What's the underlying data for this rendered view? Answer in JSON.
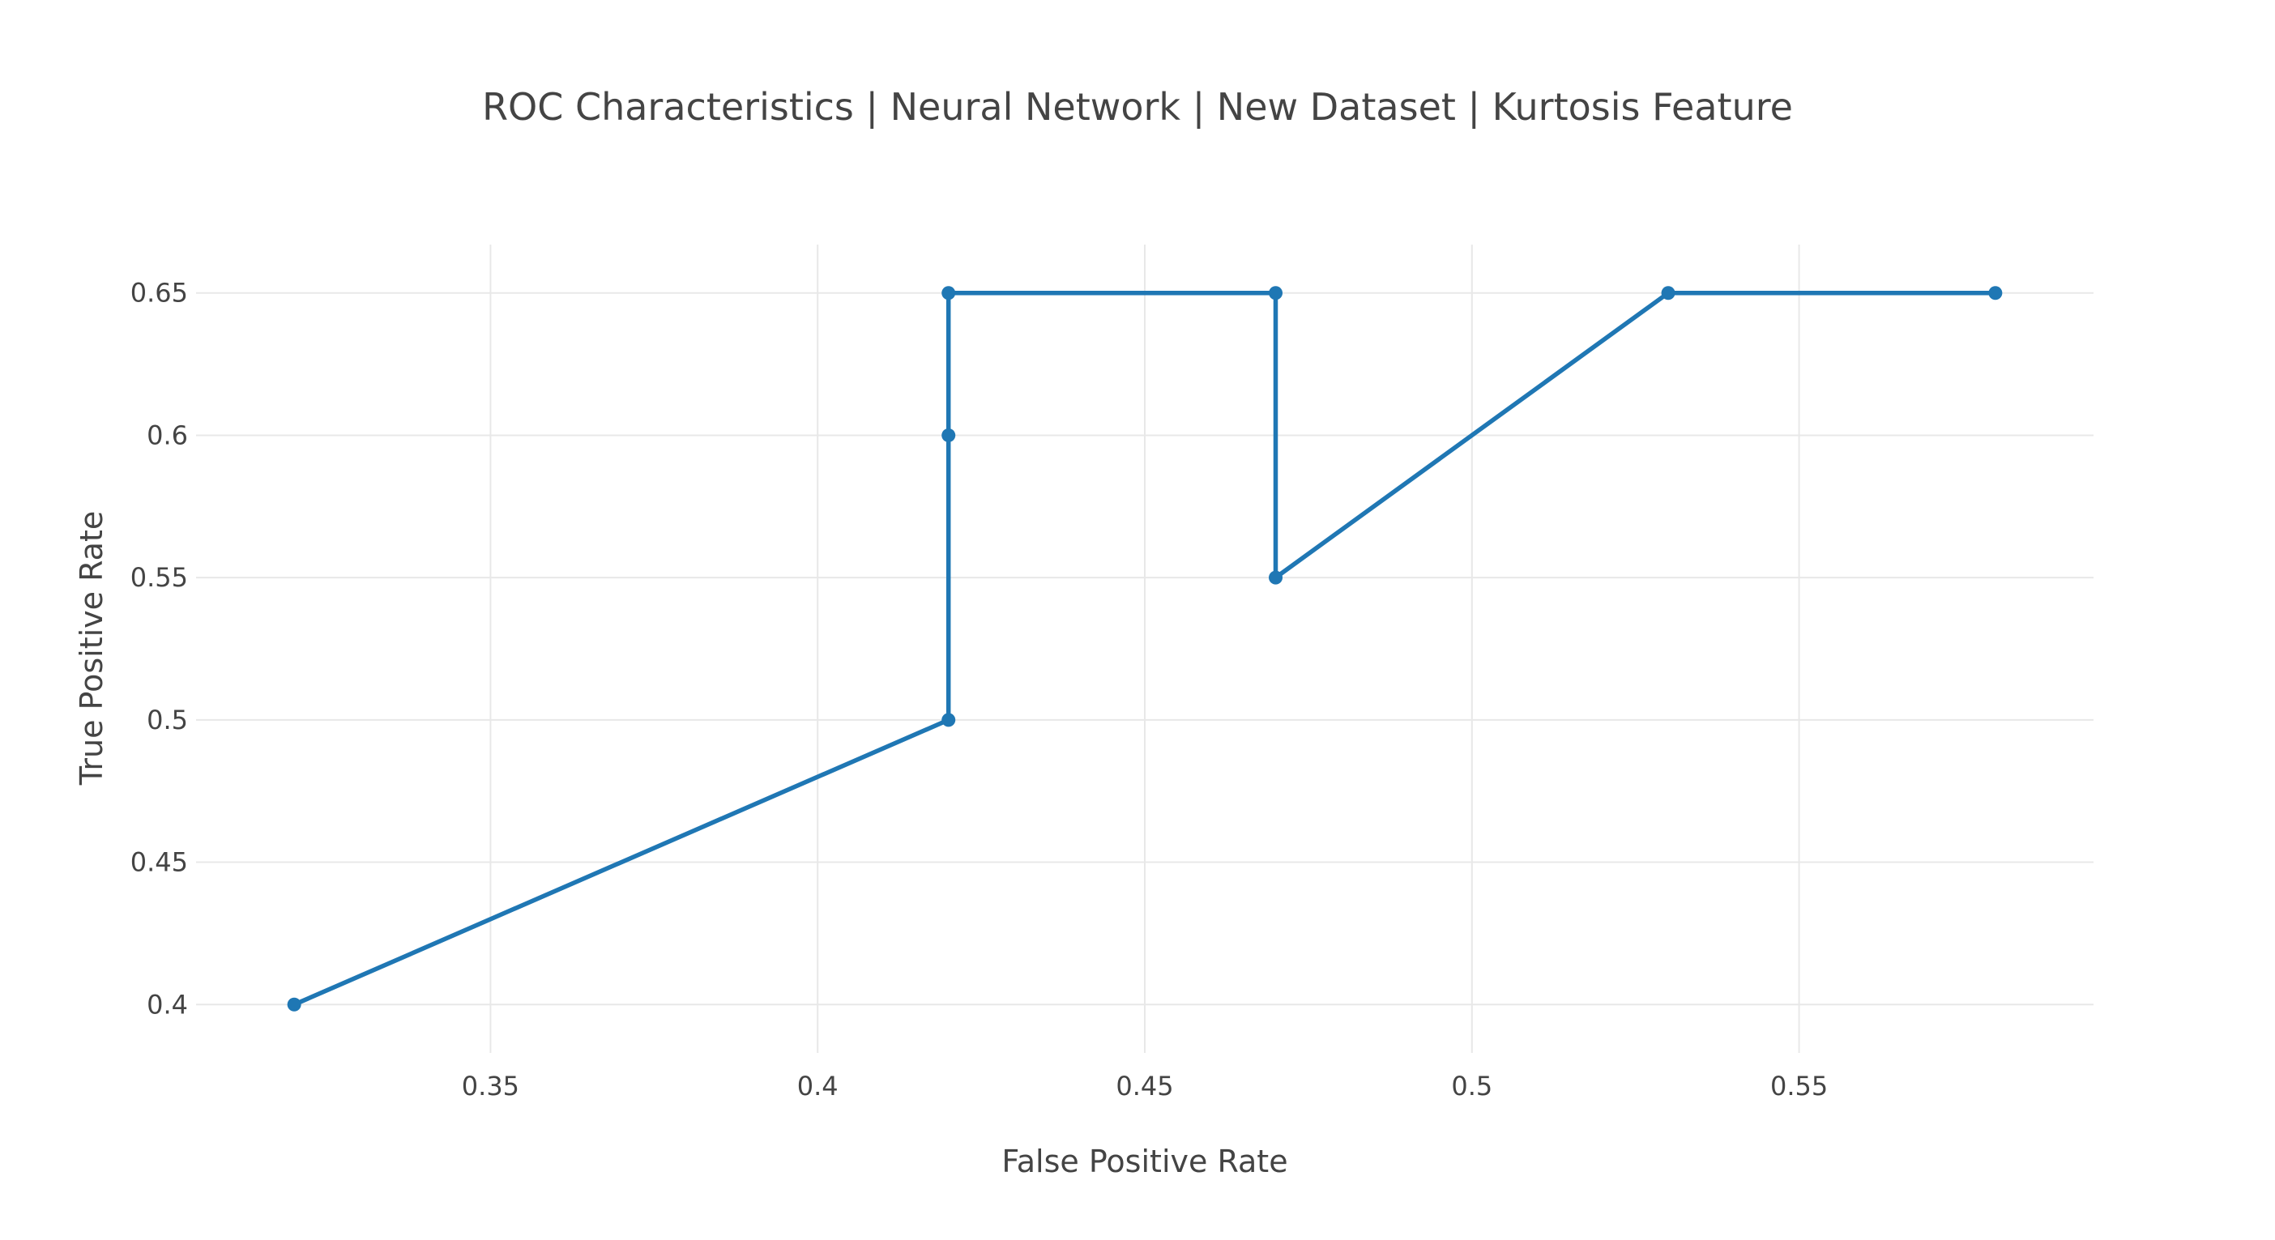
{
  "chart_data": {
    "type": "line",
    "title": "ROC Characteristics | Neural Network | New Dataset | Kurtosis Feature",
    "xlabel": "False Positive Rate",
    "ylabel": "True Positive Rate",
    "xlim": [
      0.305,
      0.595
    ],
    "ylim": [
      0.383,
      0.667
    ],
    "xticks": [
      0.35,
      0.4,
      0.45,
      0.5,
      0.55
    ],
    "xtick_labels": [
      "0.35",
      "0.4",
      "0.45",
      "0.5",
      "0.55"
    ],
    "yticks": [
      0.4,
      0.45,
      0.5,
      0.55,
      0.6,
      0.65
    ],
    "ytick_labels": [
      "0.4",
      "0.45",
      "0.5",
      "0.55",
      "0.6",
      "0.65"
    ],
    "grid": true,
    "legend": false,
    "series": [
      {
        "color": "#1f77b4",
        "x": [
          0.32,
          0.42,
          0.42,
          0.42,
          0.47,
          0.47,
          0.53,
          0.58
        ],
        "y": [
          0.4,
          0.5,
          0.6,
          0.65,
          0.65,
          0.55,
          0.65,
          0.65
        ]
      }
    ]
  }
}
